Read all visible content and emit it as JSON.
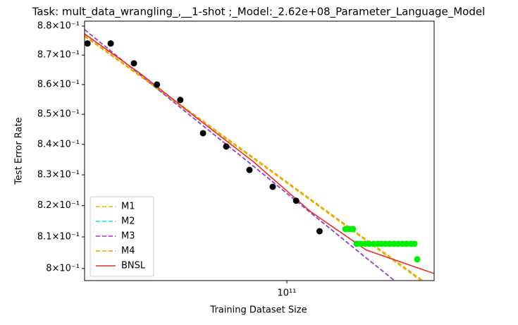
{
  "chart_data": {
    "type": "line",
    "title": "Task: mult_data_wrangling_,__1-shot ;_Model:_2.62e+08_Parameter_Language_Model",
    "x_label": "Training Dataset Size",
    "y_label": "Test Error Rate",
    "xscale": "log",
    "yscale": "log",
    "xlim": [
      22800000000.0,
      293500000000.0
    ],
    "ylim": [
      0.7962,
      0.8817
    ],
    "xticks": [
      {
        "value": 100000000000.0,
        "label": "10¹¹"
      }
    ],
    "yticks": [
      {
        "value": 0.8,
        "label": "8×10⁻¹"
      },
      {
        "value": 0.81,
        "label": "8.1×10⁻¹"
      },
      {
        "value": 0.82,
        "label": "8.2×10⁻¹"
      },
      {
        "value": 0.83,
        "label": "8.3×10⁻¹"
      },
      {
        "value": 0.84,
        "label": "8.4×10⁻¹"
      },
      {
        "value": 0.85,
        "label": "8.5×10⁻¹"
      },
      {
        "value": 0.86,
        "label": "8.6×10⁻¹"
      },
      {
        "value": 0.87,
        "label": "8.7×10⁻¹"
      },
      {
        "value": 0.88,
        "label": "8.8×10⁻¹"
      }
    ],
    "legend": "lower left",
    "x": [
      22800000000.0,
      34400000000.0,
      52000000000.0,
      78500000000.0,
      118500000000.0,
      178900000000.0,
      293500000000.0
    ],
    "series": [
      {
        "name": "M1",
        "color": "#d8c000",
        "dash": true,
        "values": [
          0.8764,
          0.8626,
          0.8486,
          0.8352,
          0.8218,
          0.8087,
          0.7931
        ]
      },
      {
        "name": "M2",
        "color": "#00e8e8",
        "dash": true,
        "values": [
          0.8787,
          0.863,
          0.8476,
          0.8327,
          0.8178,
          0.8032,
          0.7863
        ]
      },
      {
        "name": "M3",
        "color": "#b82ccc",
        "dash": true,
        "values": [
          0.8788,
          0.8631,
          0.8477,
          0.8328,
          0.8179,
          0.8033,
          0.7864
        ]
      },
      {
        "name": "M4",
        "color": "#f09a00",
        "dash": true,
        "values": [
          0.8768,
          0.8629,
          0.8491,
          0.8356,
          0.8222,
          0.8091,
          0.7936
        ]
      },
      {
        "name": "BNSL",
        "color": "#e8302a",
        "dash": false,
        "values": [
          0.8773,
          0.8636,
          0.8486,
          0.8342,
          0.8182,
          0.8058,
          0.7984
        ]
      }
    ],
    "scatter": [
      {
        "color": "#000000",
        "x": [
          23300000000.0,
          27600000000.0,
          32700000000.0,
          38700000000.0,
          45900000000.0,
          54200000000.0,
          64200000000.0,
          76100000000.0,
          90200000000.0,
          107000000000.0,
          127000000000.0
        ],
        "values": [
          0.874,
          0.874,
          0.8672,
          0.86,
          0.8548,
          0.8437,
          0.8393,
          0.8316,
          0.8261,
          0.8216,
          0.8118
        ]
      },
      {
        "color": "#00ee00",
        "x": [
          153500000000.0,
          158000000000.0,
          162000000000.0,
          166600000000.0,
          171700000000.0,
          177200000000.0,
          182700000000.0,
          188500000000.0,
          194400000000.0,
          199500000000.0,
          205700000000.0,
          212100000000.0,
          218800000000.0,
          225700000000.0,
          232700000000.0,
          240000000000.0,
          247600000000.0,
          254100000000.0,
          259400000000.0
        ],
        "values": [
          0.8125,
          0.8125,
          0.8125,
          0.8078,
          0.8078,
          0.8078,
          0.8078,
          0.8078,
          0.8078,
          0.8078,
          0.8078,
          0.8078,
          0.8078,
          0.8078,
          0.8078,
          0.8078,
          0.8078,
          0.8078,
          0.8029
        ]
      }
    ]
  }
}
